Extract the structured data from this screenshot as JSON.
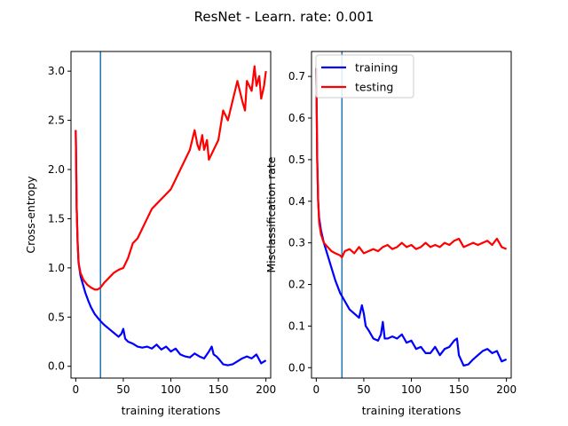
{
  "figure": {
    "title": "ResNet - Learn. rate: 0.001"
  },
  "chart_data": [
    {
      "type": "line",
      "xlabel": "training iterations",
      "ylabel": "Cross-entropy",
      "xlim": [
        -5,
        205
      ],
      "ylim": [
        -0.12,
        3.2
      ],
      "xticks": [
        0,
        50,
        100,
        150,
        200
      ],
      "yticks": [
        0.0,
        0.5,
        1.0,
        1.5,
        2.0,
        2.5,
        3.0
      ],
      "xtick_labels": [
        "0",
        "50",
        "100",
        "150",
        "200"
      ],
      "ytick_labels": [
        "0.0",
        "0.5",
        "1.0",
        "1.5",
        "2.0",
        "2.5",
        "3.0"
      ],
      "vline_x": 26,
      "grid": false,
      "series": [
        {
          "color": "#0000ff",
          "x": [
            0,
            1,
            2,
            3,
            5,
            7,
            10,
            13,
            16,
            20,
            25,
            30,
            35,
            40,
            45,
            48,
            50,
            52,
            55,
            60,
            65,
            70,
            75,
            80,
            85,
            90,
            95,
            100,
            105,
            110,
            115,
            120,
            125,
            130,
            135,
            140,
            143,
            145,
            148,
            150,
            155,
            160,
            165,
            170,
            175,
            180,
            185,
            190,
            195,
            200
          ],
          "y": [
            2.4,
            1.6,
            1.25,
            1.05,
            0.92,
            0.85,
            0.75,
            0.67,
            0.6,
            0.53,
            0.47,
            0.42,
            0.38,
            0.34,
            0.3,
            0.33,
            0.38,
            0.28,
            0.25,
            0.23,
            0.2,
            0.19,
            0.2,
            0.18,
            0.22,
            0.17,
            0.2,
            0.15,
            0.18,
            0.12,
            0.1,
            0.09,
            0.13,
            0.1,
            0.08,
            0.15,
            0.2,
            0.12,
            0.1,
            0.08,
            0.02,
            0.01,
            0.02,
            0.05,
            0.08,
            0.1,
            0.08,
            0.12,
            0.03,
            0.06
          ]
        },
        {
          "color": "#ff0000",
          "x": [
            0,
            1,
            2,
            3,
            5,
            8,
            12,
            16,
            20,
            23,
            26,
            30,
            35,
            40,
            45,
            50,
            55,
            60,
            65,
            70,
            75,
            80,
            85,
            90,
            95,
            100,
            105,
            110,
            115,
            120,
            125,
            128,
            130,
            133,
            135,
            138,
            140,
            145,
            150,
            155,
            160,
            165,
            170,
            175,
            178,
            180,
            185,
            188,
            190,
            193,
            195,
            198,
            200
          ],
          "y": [
            2.4,
            1.6,
            1.25,
            1.05,
            0.95,
            0.88,
            0.83,
            0.8,
            0.78,
            0.78,
            0.8,
            0.85,
            0.9,
            0.95,
            0.98,
            1.0,
            1.1,
            1.25,
            1.3,
            1.4,
            1.5,
            1.6,
            1.65,
            1.7,
            1.75,
            1.8,
            1.9,
            2.0,
            2.1,
            2.2,
            2.4,
            2.25,
            2.2,
            2.35,
            2.2,
            2.3,
            2.1,
            2.2,
            2.3,
            2.6,
            2.5,
            2.7,
            2.9,
            2.7,
            2.6,
            2.9,
            2.8,
            3.05,
            2.85,
            2.95,
            2.72,
            2.85,
            3.0
          ]
        }
      ]
    },
    {
      "type": "line",
      "xlabel": "training iterations",
      "ylabel": "Misclassification rate",
      "xlim": [
        -5,
        205
      ],
      "ylim": [
        -0.025,
        0.76
      ],
      "xticks": [
        0,
        50,
        100,
        150,
        200
      ],
      "yticks": [
        0.0,
        0.1,
        0.2,
        0.3,
        0.4,
        0.5,
        0.6,
        0.7
      ],
      "xtick_labels": [
        "0",
        "50",
        "100",
        "150",
        "200"
      ],
      "ytick_labels": [
        "0.0",
        "0.1",
        "0.2",
        "0.3",
        "0.4",
        "0.5",
        "0.6",
        "0.7"
      ],
      "vline_x": 27,
      "grid": false,
      "legend": {
        "placement": "upper-left",
        "entries": [
          "training",
          "testing"
        ]
      },
      "series": [
        {
          "name": "training",
          "color": "#0000ff",
          "x": [
            0,
            1,
            2,
            3,
            5,
            8,
            12,
            16,
            20,
            25,
            30,
            35,
            40,
            45,
            48,
            50,
            52,
            55,
            60,
            65,
            68,
            70,
            72,
            75,
            80,
            85,
            90,
            95,
            100,
            105,
            110,
            115,
            120,
            125,
            130,
            135,
            140,
            145,
            148,
            150,
            155,
            160,
            165,
            170,
            175,
            180,
            185,
            190,
            195,
            200
          ],
          "y": [
            0.72,
            0.5,
            0.4,
            0.36,
            0.33,
            0.3,
            0.27,
            0.24,
            0.21,
            0.18,
            0.16,
            0.14,
            0.13,
            0.12,
            0.15,
            0.13,
            0.1,
            0.09,
            0.07,
            0.065,
            0.08,
            0.11,
            0.07,
            0.07,
            0.075,
            0.07,
            0.08,
            0.06,
            0.065,
            0.045,
            0.05,
            0.035,
            0.035,
            0.05,
            0.03,
            0.045,
            0.05,
            0.065,
            0.07,
            0.03,
            0.005,
            0.008,
            0.02,
            0.03,
            0.04,
            0.045,
            0.035,
            0.04,
            0.015,
            0.02
          ]
        },
        {
          "name": "testing",
          "color": "#ff0000",
          "x": [
            0,
            1,
            2,
            3,
            5,
            8,
            12,
            16,
            20,
            25,
            27,
            30,
            35,
            40,
            45,
            50,
            55,
            60,
            65,
            70,
            75,
            80,
            85,
            90,
            95,
            100,
            105,
            110,
            115,
            120,
            125,
            130,
            135,
            140,
            145,
            150,
            155,
            160,
            165,
            170,
            175,
            180,
            185,
            190,
            195,
            200
          ],
          "y": [
            0.72,
            0.5,
            0.4,
            0.35,
            0.32,
            0.3,
            0.29,
            0.28,
            0.275,
            0.27,
            0.265,
            0.28,
            0.285,
            0.275,
            0.29,
            0.275,
            0.28,
            0.285,
            0.28,
            0.29,
            0.295,
            0.285,
            0.29,
            0.3,
            0.29,
            0.295,
            0.285,
            0.29,
            0.3,
            0.29,
            0.295,
            0.29,
            0.3,
            0.295,
            0.305,
            0.31,
            0.29,
            0.295,
            0.3,
            0.295,
            0.3,
            0.305,
            0.295,
            0.31,
            0.29,
            0.285
          ]
        }
      ]
    }
  ]
}
